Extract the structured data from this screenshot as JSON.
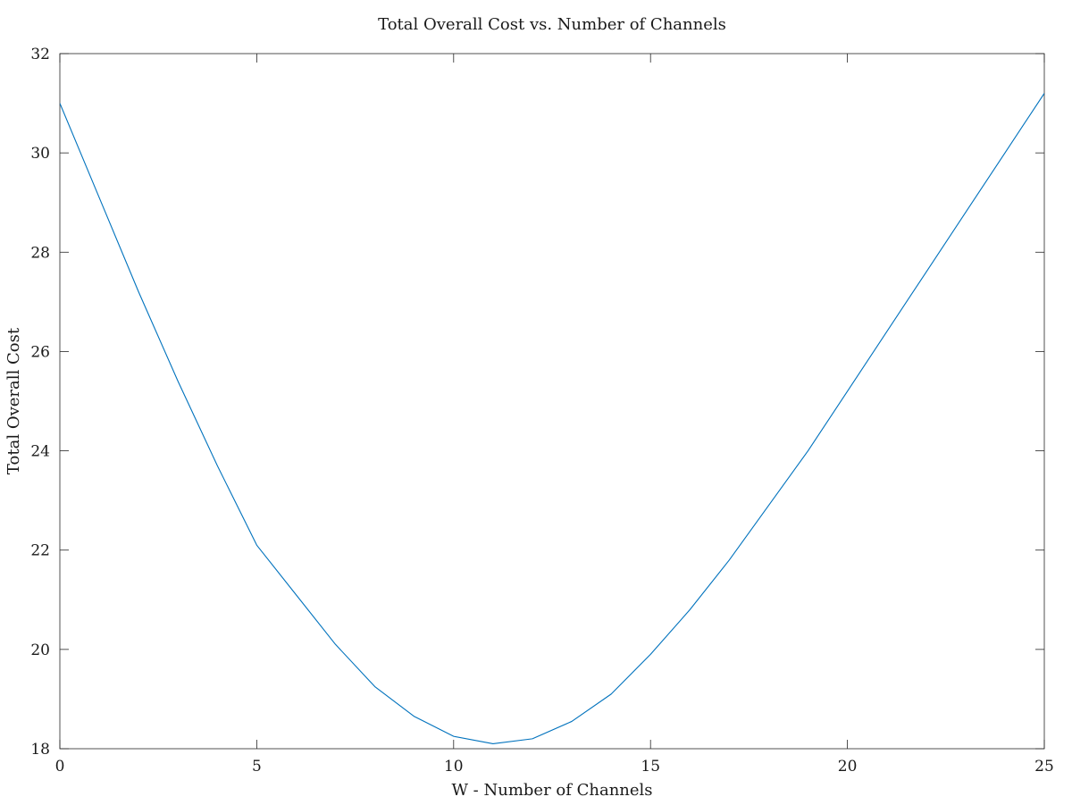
{
  "chart_data": {
    "type": "line",
    "title": "Total Overall Cost vs. Number of Channels",
    "xlabel": "W - Number of Channels",
    "ylabel": "Total Overall Cost",
    "xlim": [
      0,
      25
    ],
    "ylim": [
      18,
      32
    ],
    "xticks": [
      0,
      5,
      10,
      15,
      20,
      25
    ],
    "yticks": [
      18,
      20,
      22,
      24,
      26,
      28,
      30,
      32
    ],
    "grid": false,
    "line_color": "#0072BD",
    "series": [
      {
        "x": [
          0,
          1,
          2,
          3,
          4,
          5,
          6,
          7,
          8,
          9,
          10,
          11,
          12,
          13,
          14,
          15,
          16,
          17,
          18,
          19,
          20,
          21,
          22,
          23,
          24,
          25
        ],
        "values": [
          31.0,
          29.1,
          27.2,
          25.4,
          23.7,
          22.1,
          21.1,
          20.1,
          19.25,
          18.65,
          18.25,
          18.1,
          18.2,
          18.55,
          19.1,
          19.9,
          20.8,
          21.8,
          22.9,
          24.0,
          25.2,
          26.4,
          27.6,
          28.8,
          30.0,
          31.2
        ]
      }
    ]
  }
}
